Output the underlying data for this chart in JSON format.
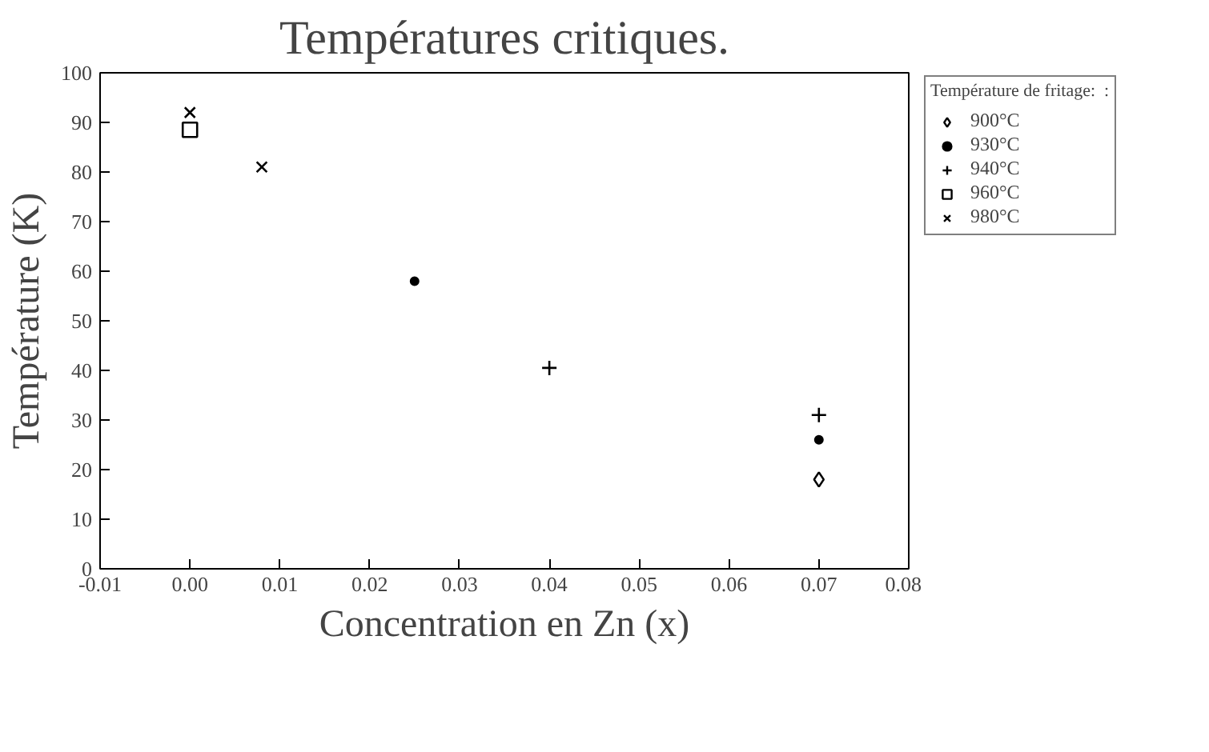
{
  "chart_data": {
    "type": "scatter",
    "title": "Températures critiques.",
    "xlabel": "Concentration en Zn (x)",
    "ylabel": "Température (K)",
    "legend_title": "Température de fritage:  :",
    "legend": "right",
    "grid": false,
    "xlim": [
      -0.01,
      0.08
    ],
    "xticks": [
      {
        "value": -0.01,
        "label": "-0.01"
      },
      {
        "value": 0,
        "label": "0.00"
      },
      {
        "value": 0.01,
        "label": "0.01"
      },
      {
        "value": 0.02,
        "label": "0.02"
      },
      {
        "value": 0.03,
        "label": "0.03"
      },
      {
        "value": 0.04,
        "label": "0.04"
      },
      {
        "value": 0.05,
        "label": "0.05"
      },
      {
        "value": 0.06,
        "label": "0.06"
      },
      {
        "value": 0.07,
        "label": "0.07"
      },
      {
        "value": 0.08,
        "label": "0.08"
      }
    ],
    "ylim": [
      0,
      100
    ],
    "yticks": [
      0,
      10,
      20,
      30,
      40,
      50,
      60,
      70,
      80,
      90,
      100
    ],
    "series": [
      {
        "name": "900°C",
        "color": "#000000",
        "marker": "diamond",
        "x": [
          0.07
        ],
        "values": [
          18
        ]
      },
      {
        "name": "930°C",
        "color": "#000000",
        "marker": "circle",
        "x": [
          0.025,
          0.07
        ],
        "values": [
          58,
          26
        ]
      },
      {
        "name": "940°C",
        "color": "#000000",
        "marker": "cross",
        "x": [
          0.04,
          0.07
        ],
        "values": [
          40.5,
          31
        ]
      },
      {
        "name": "960°C",
        "color": "#000000",
        "marker": "square",
        "x": [
          0.0
        ],
        "values": [
          88.5
        ]
      },
      {
        "name": "980°C",
        "color": "#000000",
        "marker": "x",
        "x": [
          0.0,
          0.008
        ],
        "values": [
          92,
          81
        ]
      }
    ]
  }
}
